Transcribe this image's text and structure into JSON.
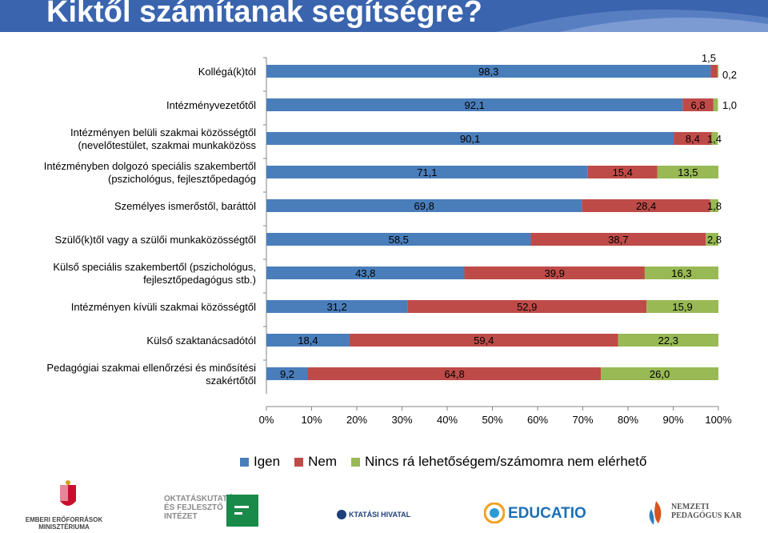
{
  "header": {
    "title": "Kiktől számítanak segítségre?",
    "band_color": "#3a64ae"
  },
  "chart_data": {
    "type": "bar",
    "orientation": "horizontal",
    "stacked": "percent",
    "categories": [
      [
        "Kollégá(k)tól"
      ],
      [
        "Intézményvezetőtől"
      ],
      [
        "Intézményen belüli szakmai közösségtől",
        "(nevelőtestület, szakmai munkaközöss"
      ],
      [
        "Intézményben dolgozó speciális szakembertől",
        "(pszichológus, fejlesztőpedagóg"
      ],
      [
        "Személyes ismerőstől, baráttól"
      ],
      [
        "Szülő(k)től vagy a szülői munkaközösségtől"
      ],
      [
        "Külső speciális szakembertől (pszichológus,",
        "fejlesztőpedagógus stb.)"
      ],
      [
        "Intézményen kívüli szakmai közösségtől"
      ],
      [
        "Külső szaktanácsadótól"
      ],
      [
        "Pedagógiai szakmai ellenőrzési és minősítési",
        "szakértőtől"
      ]
    ],
    "series": [
      {
        "name": "Igen",
        "color": "#4a7ebb",
        "values": [
          98.3,
          92.1,
          90.1,
          71.1,
          69.8,
          58.5,
          43.8,
          31.2,
          18.4,
          9.2
        ],
        "labels": [
          "98,3",
          "92,1",
          "90,1",
          "71,1",
          "69,8",
          "58,5",
          "43,8",
          "31,2",
          "18,4",
          "9,2"
        ]
      },
      {
        "name": "Nem",
        "color": "#be4b48",
        "values": [
          1.5,
          6.8,
          8.4,
          15.4,
          28.4,
          38.7,
          39.9,
          52.9,
          59.4,
          64.8
        ],
        "labels": [
          "1,5",
          "6,8",
          "8,4",
          "15,4",
          "28,4",
          "38,7",
          "39,9",
          "52,9",
          "59,4",
          "64,8"
        ]
      },
      {
        "name": "Nincs rá lehetőségem/számomra nem elérhető",
        "color": "#98b954",
        "values": [
          0.2,
          1.0,
          1.4,
          13.5,
          1.8,
          2.8,
          16.3,
          15.9,
          22.3,
          26.0
        ],
        "labels": [
          "0,2",
          "1,0",
          "1,4",
          "13,5",
          "1,8",
          "2,8",
          "16,3",
          "15,9",
          "22,3",
          "26,0"
        ]
      }
    ],
    "x_ticks": [
      "0%",
      "10%",
      "20%",
      "30%",
      "40%",
      "50%",
      "60%",
      "70%",
      "80%",
      "90%",
      "100%"
    ],
    "xlim": [
      0,
      100
    ],
    "grid": false,
    "legend_position": "bottom"
  },
  "footer": {
    "logos": [
      {
        "name": "emberi-eroforrasok-logo",
        "text": "EMBERI ERŐFORRÁSOK\nMINISZTÉRIUMA"
      },
      {
        "name": "ofi-logo",
        "text": "OKTATÁSKUTATÓ\nÉS FEJLESZTŐ\nINTÉZET"
      },
      {
        "name": "oktatasi-hivatal-logo",
        "text": "KTATÁSI HIVATAL"
      },
      {
        "name": "educatio-logo",
        "text": "EDUCATIO"
      },
      {
        "name": "nemzeti-pedagogus-kar-logo",
        "text": "NEMZETI\nPEDAGÓGUS KAR"
      }
    ]
  }
}
